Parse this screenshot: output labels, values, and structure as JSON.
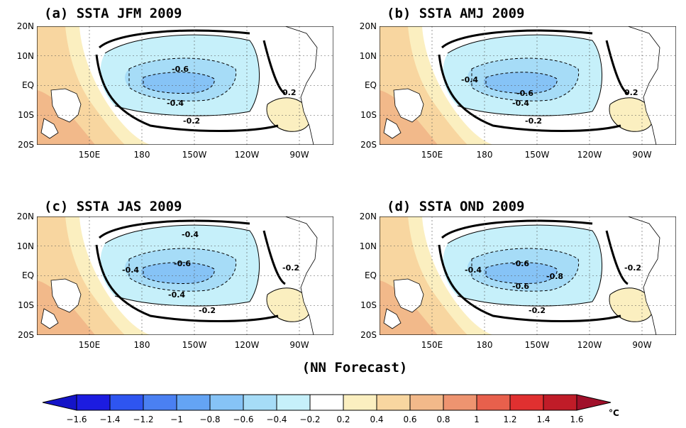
{
  "figure": {
    "caption": "(NN Forecast)",
    "units": "°C"
  },
  "axes": {
    "lat_labels": [
      "20N",
      "10N",
      "EQ",
      "10S",
      "20S"
    ],
    "lon_labels": [
      "150E",
      "180",
      "150W",
      "120W",
      "90W"
    ]
  },
  "panels": [
    {
      "title": "(a) SSTA JFM 2009",
      "contour_labels": [
        "-0.6",
        "-0.4",
        "-0.2",
        "0.2"
      ]
    },
    {
      "title": "(b) SSTA AMJ 2009",
      "contour_labels": [
        "-0.4",
        "-0.6",
        "-0.4",
        "-0.2",
        "0.2"
      ]
    },
    {
      "title": "(c) SSTA JAS 2009",
      "contour_labels": [
        "-0.4",
        "-0.4",
        "-0.6",
        "-0.4",
        "-0.2",
        "-0.2"
      ]
    },
    {
      "title": "(d) SSTA OND 2009",
      "contour_labels": [
        "-0.6",
        "-0.8",
        "-0.6",
        "-0.4",
        "-0.2",
        "-0.2"
      ]
    }
  ],
  "colorbar": {
    "labels": [
      "-1.6",
      "-1.4",
      "-1.2",
      "-1",
      "-0.8",
      "-0.6",
      "-0.4",
      "-0.2",
      "0.2",
      "0.4",
      "0.6",
      "0.8",
      "1",
      "1.2",
      "1.4",
      "1.6"
    ],
    "colors": [
      "#1c1ce0",
      "#2e55f0",
      "#4a80f2",
      "#64a4f4",
      "#86c3f6",
      "#a6dcf7",
      "#c6f0fa",
      "#ffffff",
      "#fbefc0",
      "#f8d6a0",
      "#f2b98a",
      "#ee9470",
      "#e8604c",
      "#e03030",
      "#c01c28"
    ],
    "left_end_color": "#1414c8",
    "right_end_color": "#a0102a"
  }
}
